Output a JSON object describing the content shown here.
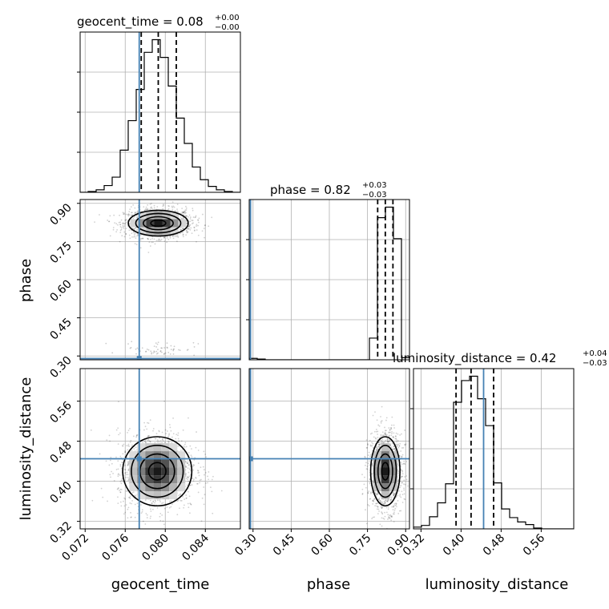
{
  "chart_data": {
    "type": "corner",
    "parameters": [
      "geocent_time",
      "phase",
      "luminosity_distance"
    ],
    "truths": {
      "geocent_time": 0.0774,
      "phase": 0.29,
      "luminosity_distance": 0.445
    },
    "colors": {
      "truth": "#4682b4",
      "hist": "#000000",
      "grid": "#b0b0b0",
      "scatter": "#000000"
    },
    "grid": true,
    "axes": {
      "geocent_time": {
        "range": [
          0.0715,
          0.0875
        ],
        "ticks": [
          0.072,
          0.076,
          0.08,
          0.084
        ],
        "tick_labels": [
          "0.072",
          "0.076",
          "0.080",
          "0.084"
        ]
      },
      "phase": {
        "range": [
          0.285,
          0.915
        ],
        "ticks": [
          0.3,
          0.45,
          0.6,
          0.75,
          0.9
        ],
        "tick_labels": [
          "0.30",
          "0.45",
          "0.60",
          "0.75",
          "0.90"
        ]
      },
      "luminosity_distance": {
        "range": [
          0.305,
          0.625
        ],
        "ticks": [
          0.32,
          0.4,
          0.48,
          0.56
        ],
        "tick_labels": [
          "0.32",
          "0.40",
          "0.48",
          "0.56"
        ]
      }
    },
    "marginals": [
      {
        "parameter": "geocent_time",
        "title_main": "geocent_time = 0.08",
        "title_sup": "+0.00",
        "title_sub": "−0.00",
        "quantiles": [
          0.0776,
          0.0793,
          0.0811
        ],
        "bin_edges": [
          0.0715,
          0.0723,
          0.0731,
          0.0739,
          0.0747,
          0.0755,
          0.0763,
          0.0771,
          0.0779,
          0.0787,
          0.0795,
          0.0803,
          0.0811,
          0.0819,
          0.0827,
          0.0835,
          0.0843,
          0.0851,
          0.0859,
          0.0867,
          0.0875
        ],
        "counts": [
          0,
          1,
          3,
          8,
          18,
          50,
          85,
          122,
          166,
          181,
          160,
          126,
          88,
          58,
          30,
          15,
          7,
          3,
          1,
          0
        ]
      },
      {
        "parameter": "phase",
        "title_main": "phase = 0.82",
        "title_sup": "+0.03",
        "title_sub": "−0.03",
        "quantiles": [
          0.79,
          0.82,
          0.85
        ],
        "bin_edges": [
          0.285,
          0.3165,
          0.348,
          0.3795,
          0.411,
          0.4425,
          0.474,
          0.5055,
          0.537,
          0.5685,
          0.6,
          0.6315,
          0.663,
          0.6945,
          0.726,
          0.7575,
          0.789,
          0.8205,
          0.852,
          0.8835,
          0.915
        ],
        "counts": [
          2,
          1,
          0,
          0,
          0,
          0,
          0,
          0,
          0,
          0,
          0,
          0,
          0,
          0,
          0,
          31,
          203,
          218,
          173,
          3
        ]
      },
      {
        "parameter": "luminosity_distance",
        "title_main": "luminosity_distance = 0.42",
        "title_sup": "+0.04",
        "title_sub": "−0.03",
        "quantiles": [
          0.39,
          0.42,
          0.465
        ],
        "bin_edges": [
          0.305,
          0.321,
          0.337,
          0.353,
          0.369,
          0.385,
          0.401,
          0.417,
          0.433,
          0.449,
          0.465,
          0.481,
          0.497,
          0.513,
          0.529,
          0.545,
          0.561,
          0.577,
          0.593,
          0.609,
          0.625
        ],
        "counts": [
          2,
          4,
          14,
          30,
          52,
          146,
          171,
          176,
          150,
          119,
          53,
          23,
          13,
          8,
          5,
          1,
          0,
          0,
          0,
          0
        ]
      }
    ],
    "joint_panels": [
      {
        "x": "geocent_time",
        "y": "phase",
        "center": [
          0.0793,
          0.822
        ],
        "spread": [
          0.0013,
          0.022
        ],
        "secondary_cluster": [
          0.0795,
          0.33
        ]
      },
      {
        "x": "geocent_time",
        "y": "luminosity_distance",
        "center": [
          0.0792,
          0.42
        ],
        "spread": [
          0.0015,
          0.03
        ]
      },
      {
        "x": "phase",
        "y": "luminosity_distance",
        "center": [
          0.82,
          0.42
        ],
        "spread": [
          0.025,
          0.03
        ]
      }
    ]
  }
}
